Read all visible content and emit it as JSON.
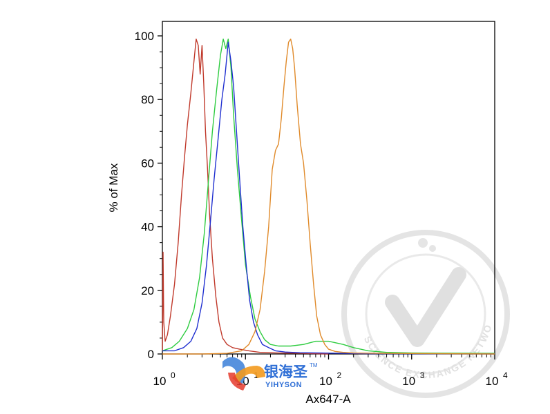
{
  "chart_data": {
    "type": "line",
    "title": "",
    "xlabel": "Ax647-A",
    "ylabel": "% of Max",
    "x_scale": "log",
    "xlim": [
      1,
      10000
    ],
    "ylim": [
      0,
      100
    ],
    "grid": false,
    "x_tick_labels": [
      {
        "base": "10",
        "exp": "0"
      },
      {
        "base": "10",
        "exp": "1"
      },
      {
        "base": "10",
        "exp": "2"
      },
      {
        "base": "10",
        "exp": "3"
      },
      {
        "base": "10",
        "exp": "4"
      }
    ],
    "x_tick_values": [
      1,
      10,
      100,
      1000,
      10000
    ],
    "y_tick_labels": [
      "0",
      "20",
      "40",
      "60",
      "80",
      "100"
    ],
    "y_tick_values": [
      0,
      20,
      40,
      60,
      80,
      100
    ],
    "series": [
      {
        "color": "#c0392b",
        "x": [
          1.0,
          1.02,
          1.04,
          1.08,
          1.15,
          1.25,
          1.4,
          1.55,
          1.7,
          1.85,
          2.0,
          2.2,
          2.4,
          2.55,
          2.7,
          2.85,
          3.0,
          3.15,
          3.3,
          3.5,
          3.7,
          4.0,
          4.4,
          4.8,
          5.3,
          6.0,
          7.0,
          8.5,
          11,
          15,
          25,
          50,
          100
        ],
        "y": [
          1,
          32,
          10,
          4,
          6,
          12,
          22,
          35,
          50,
          62,
          72,
          82,
          92,
          99,
          97,
          88,
          97,
          85,
          70,
          58,
          44,
          30,
          18,
          10,
          5,
          3,
          2,
          1.5,
          1,
          0.5,
          0.3,
          0.2,
          0
        ]
      },
      {
        "color": "#2ecc40",
        "x": [
          1.0,
          1.3,
          1.6,
          2.0,
          2.4,
          2.8,
          3.2,
          3.6,
          4.0,
          4.5,
          5.0,
          5.4,
          5.8,
          6.2,
          6.7,
          7.2,
          8.0,
          9.0,
          10,
          11.5,
          13,
          15,
          17,
          20,
          25,
          35,
          50,
          70,
          100,
          150,
          200,
          300,
          500,
          1000,
          10000
        ],
        "y": [
          1,
          2,
          4,
          8,
          14,
          24,
          38,
          55,
          70,
          83,
          94,
          99,
          96,
          99,
          90,
          75,
          58,
          42,
          28,
          18,
          11,
          7,
          4.5,
          3,
          2.5,
          2.5,
          3,
          4,
          4,
          3,
          2,
          1,
          0.5,
          0.3,
          0.2
        ]
      },
      {
        "color": "#1f2fd0",
        "x": [
          1.0,
          1.4,
          1.8,
          2.2,
          2.6,
          3.0,
          3.4,
          3.8,
          4.2,
          4.7,
          5.2,
          5.7,
          6.2,
          6.7,
          7.2,
          7.8,
          8.5,
          9.3,
          10.2,
          11.2,
          12.5,
          14,
          16,
          19,
          23,
          30,
          45,
          80,
          150,
          300,
          10000
        ],
        "y": [
          1,
          1,
          2,
          4,
          8,
          16,
          28,
          42,
          55,
          68,
          80,
          88,
          98,
          92,
          84,
          70,
          55,
          40,
          28,
          17,
          10,
          6,
          3,
          2,
          1,
          0.6,
          0.4,
          0.3,
          0.2,
          0.1,
          0
        ]
      },
      {
        "color": "#e08a2a",
        "x": [
          1.0,
          3.0,
          6.0,
          9.0,
          11.0,
          13.0,
          15.0,
          17.0,
          19.0,
          21.0,
          23.0,
          25.0,
          27.0,
          29.0,
          31.0,
          33.0,
          35.0,
          37.0,
          39.0,
          42.0,
          46.0,
          50.0,
          55.0,
          60.0,
          66.0,
          72.0,
          80.0,
          90.0,
          100.0,
          120.0,
          150.0,
          200.0,
          400.0,
          10000.0
        ],
        "y": [
          0,
          0,
          0.2,
          1,
          3,
          7,
          14,
          26,
          40,
          58,
          64,
          66,
          74,
          84,
          92,
          98,
          99,
          96,
          90,
          78,
          66,
          60,
          48,
          35,
          22,
          12,
          6,
          3,
          1.5,
          0.8,
          0.5,
          0.3,
          0.2,
          0
        ]
      }
    ]
  },
  "watermark": {
    "brand_cn": "银海圣",
    "brand_en": "YIHYSON",
    "trademark": "TM",
    "ring_text": "SCIENCE EXCHANGE NETWORK"
  }
}
